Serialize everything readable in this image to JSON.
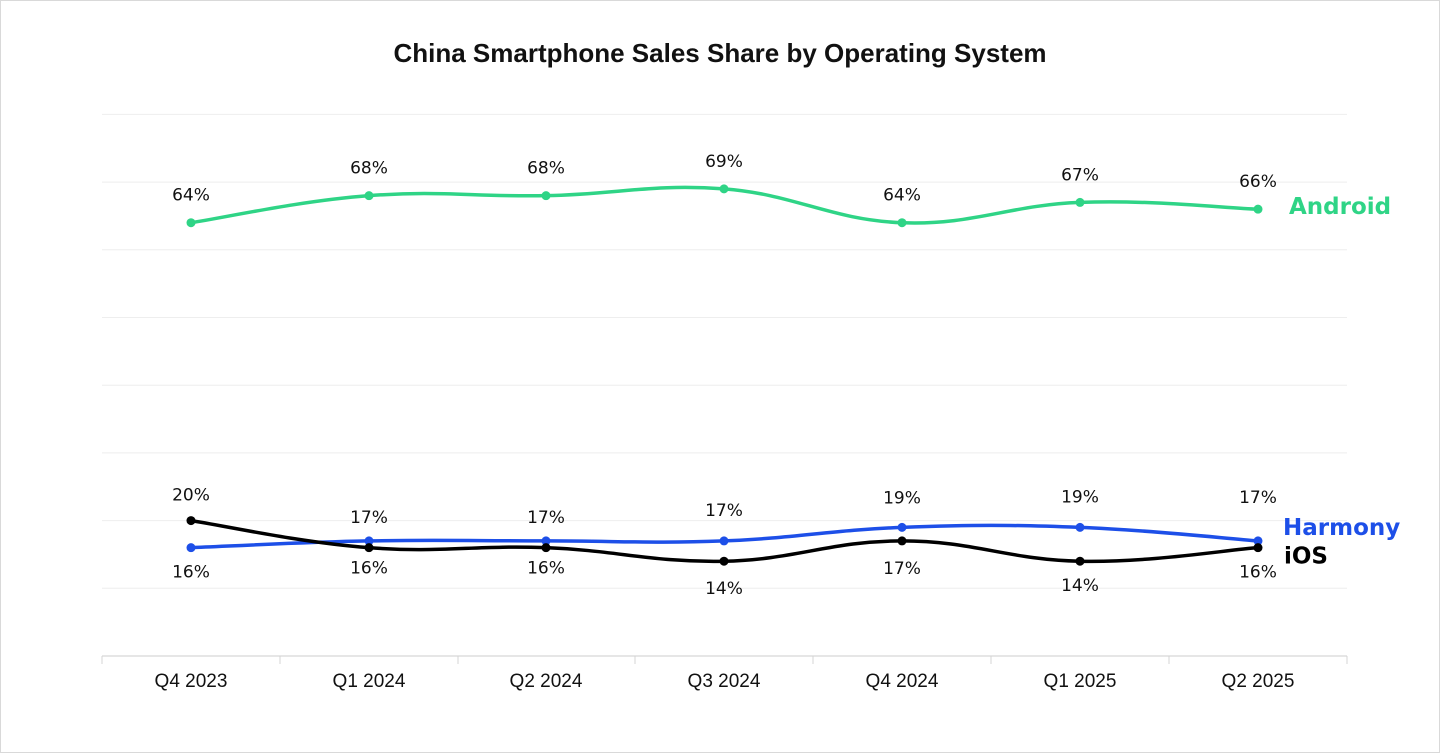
{
  "chart_data": {
    "type": "line",
    "title": "China Smartphone Sales Share by Operating System",
    "xlabel": "",
    "ylabel": "",
    "categories": [
      "Q4 2023",
      "Q1 2024",
      "Q2 2024",
      "Q3 2024",
      "Q4 2024",
      "Q1 2025",
      "Q2 2025"
    ],
    "ylim": [
      0,
      80
    ],
    "grid": true,
    "legend": "inline-right",
    "series": [
      {
        "name": "Android",
        "color": "#2fd486",
        "values": [
          64,
          68,
          68,
          69,
          64,
          67,
          66
        ],
        "labels": [
          "64%",
          "68%",
          "68%",
          "69%",
          "64%",
          "67%",
          "66%"
        ]
      },
      {
        "name": "Harmony",
        "color": "#1d4fe8",
        "values": [
          16,
          17,
          17,
          17,
          19,
          19,
          17
        ],
        "labels": [
          "16%",
          "17%",
          "17%",
          "17%",
          "19%",
          "19%",
          "17%"
        ]
      },
      {
        "name": "iOS",
        "color": "#000000",
        "values": [
          20,
          16,
          16,
          14,
          17,
          14,
          16
        ],
        "labels": [
          "20%",
          "16%",
          "16%",
          "14%",
          "17%",
          "14%",
          "16%"
        ]
      }
    ]
  }
}
